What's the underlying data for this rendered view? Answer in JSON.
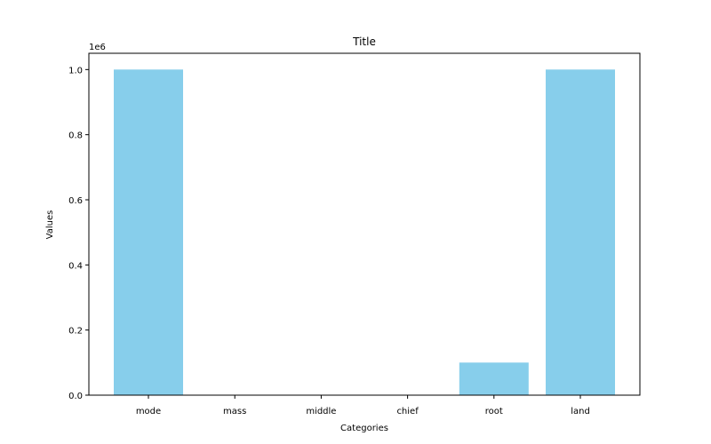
{
  "chart_data": {
    "type": "bar",
    "title": "Title",
    "xlabel": "Categories",
    "ylabel": "Values",
    "scale_label": "1e6",
    "categories": [
      "mode",
      "mass",
      "middle",
      "chief",
      "root",
      "land"
    ],
    "values": [
      1000000,
      0,
      0,
      0,
      100000,
      1000000
    ],
    "ylim": [
      0,
      1050000
    ],
    "yticks": [
      0,
      200000,
      400000,
      600000,
      800000,
      1000000
    ],
    "ytick_labels": [
      "0.0",
      "0.2",
      "0.4",
      "0.6",
      "0.8",
      "1.0"
    ],
    "bar_color": "#87ceeb",
    "grid": false,
    "legend": "none"
  }
}
